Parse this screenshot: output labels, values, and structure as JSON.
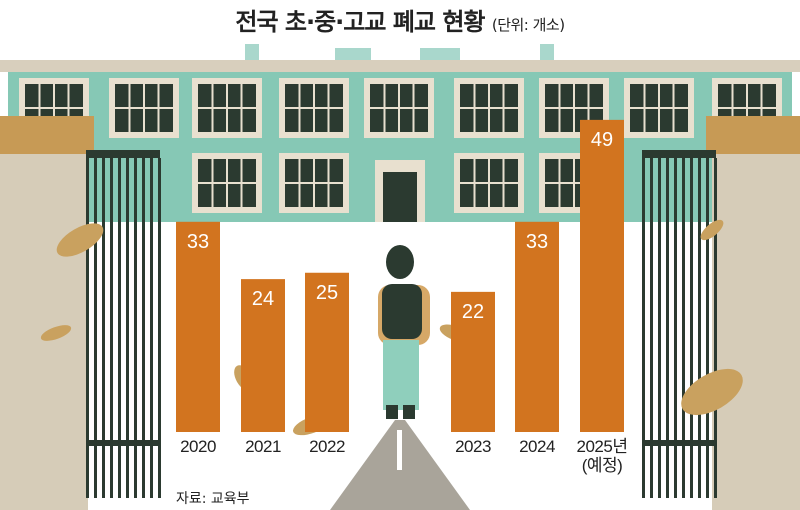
{
  "chart_data": {
    "type": "bar",
    "title": "전국 초·중·고교 폐교 현황",
    "unit": "(단위: 개소)",
    "categories": [
      "2020",
      "2021",
      "2022",
      "2023",
      "2024",
      "2025년"
    ],
    "category_notes": [
      "",
      "",
      "",
      "",
      "",
      "(예정)"
    ],
    "values": [
      33,
      24,
      25,
      22,
      33,
      49
    ],
    "ylim": [
      0,
      50
    ],
    "grid": false,
    "legend": "none",
    "bar_color": "#D2741F",
    "source": "자료: 교육부"
  }
}
